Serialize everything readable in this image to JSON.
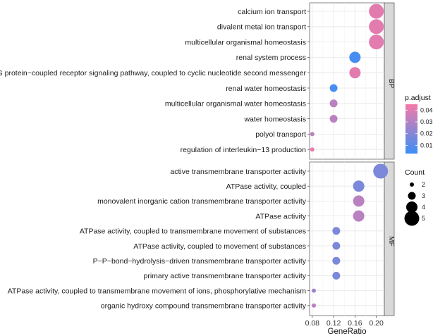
{
  "chart_data": {
    "type": "scatter",
    "xlabel": "GeneRatio",
    "xlim": [
      0.075,
      0.215
    ],
    "x_ticks": [
      0.08,
      0.12,
      0.16,
      0.2
    ],
    "x_tick_labels": [
      "0.08",
      "0.12",
      "0.16",
      "0.20"
    ],
    "color_scale": {
      "title": "p.adjust",
      "min": 0.003,
      "max": 0.045,
      "low_color": "#3a8ff5",
      "high_color": "#f47aa8",
      "ticks": [
        0.01,
        0.02,
        0.03,
        0.04
      ],
      "tick_labels": [
        "0.01",
        "0.02",
        "0.03",
        "0.04"
      ]
    },
    "size_scale": {
      "title": "Count",
      "values": [
        2,
        3,
        4,
        5
      ],
      "labels": [
        "2",
        "3",
        "4",
        "5"
      ]
    },
    "facets": [
      {
        "label": "BP",
        "rows": [
          {
            "term": "calcium ion transport",
            "gene_ratio": 0.2,
            "count": 5,
            "p_adjust": 0.041
          },
          {
            "term": "divalent metal ion transport",
            "gene_ratio": 0.2,
            "count": 5,
            "p_adjust": 0.041
          },
          {
            "term": "multicellular organismal homeostasis",
            "gene_ratio": 0.2,
            "count": 5,
            "p_adjust": 0.041
          },
          {
            "term": "renal system process",
            "gene_ratio": 0.16,
            "count": 4,
            "p_adjust": 0.006
          },
          {
            "term": "G protein−coupled receptor signaling pathway, coupled to cyclic nucleotide second messenger",
            "gene_ratio": 0.16,
            "count": 4,
            "p_adjust": 0.041
          },
          {
            "term": "renal water homeostasis",
            "gene_ratio": 0.12,
            "count": 3,
            "p_adjust": 0.006
          },
          {
            "term": "multicellular organismal water homeostasis",
            "gene_ratio": 0.12,
            "count": 3,
            "p_adjust": 0.032
          },
          {
            "term": "water homeostasis",
            "gene_ratio": 0.12,
            "count": 3,
            "p_adjust": 0.032
          },
          {
            "term": "polyol transport",
            "gene_ratio": 0.08,
            "count": 2,
            "p_adjust": 0.032
          },
          {
            "term": "regulation of interleukin−13 production",
            "gene_ratio": 0.08,
            "count": 2,
            "p_adjust": 0.043
          }
        ]
      },
      {
        "label": "MF",
        "rows": [
          {
            "term": "active transmembrane transporter activity",
            "gene_ratio": 0.208,
            "count": 5,
            "p_adjust": 0.018
          },
          {
            "term": "ATPase activity, coupled",
            "gene_ratio": 0.167,
            "count": 4,
            "p_adjust": 0.018
          },
          {
            "term": "monovalent inorganic cation transmembrane transporter activity",
            "gene_ratio": 0.167,
            "count": 4,
            "p_adjust": 0.032
          },
          {
            "term": "ATPase activity",
            "gene_ratio": 0.167,
            "count": 4,
            "p_adjust": 0.032
          },
          {
            "term": "ATPase activity, coupled to transmembrane movement of substances",
            "gene_ratio": 0.125,
            "count": 3,
            "p_adjust": 0.018
          },
          {
            "term": "ATPase activity, coupled to movement of substances",
            "gene_ratio": 0.125,
            "count": 3,
            "p_adjust": 0.018
          },
          {
            "term": "P−P−bond−hydrolysis−driven transmembrane transporter activity",
            "gene_ratio": 0.125,
            "count": 3,
            "p_adjust": 0.018
          },
          {
            "term": "primary active transmembrane transporter activity",
            "gene_ratio": 0.125,
            "count": 3,
            "p_adjust": 0.018
          },
          {
            "term": "ATPase activity, coupled to transmembrane movement of ions, phosphorylative mechanism",
            "gene_ratio": 0.083,
            "count": 2,
            "p_adjust": 0.026
          },
          {
            "term": "organic hydroxy compound transmembrane transporter activity",
            "gene_ratio": 0.083,
            "count": 2,
            "p_adjust": 0.032
          }
        ]
      }
    ]
  }
}
